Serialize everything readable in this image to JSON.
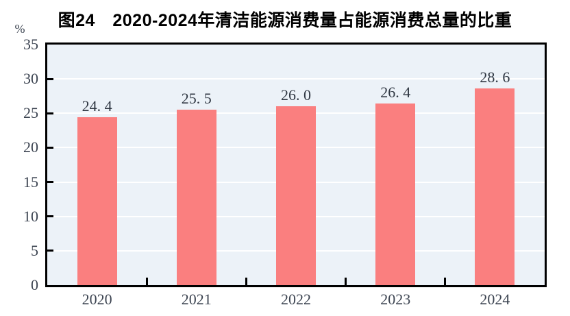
{
  "header": {
    "title": "图24　2020-2024年清洁能源消费量占能源消费总量的比重"
  },
  "chart_data": {
    "type": "bar",
    "title": "图24　2020-2024年清洁能源消费量占能源消费总量的比重",
    "categories": [
      "2020",
      "2021",
      "2022",
      "2023",
      "2024"
    ],
    "values": [
      24.4,
      25.5,
      26.0,
      26.4,
      28.6
    ],
    "value_labels": [
      "24. 4",
      "25. 5",
      "26. 0",
      "26. 4",
      "28. 6"
    ],
    "unit_label": "%",
    "xlabel": "",
    "ylabel": "%",
    "ylim": [
      0,
      35
    ],
    "yticks": [
      0,
      5,
      10,
      15,
      20,
      25,
      30,
      35
    ],
    "ytick_step": 5,
    "grid": true,
    "legend_position": "none",
    "colors": {
      "bar": "#fa7f7f",
      "plot_background": "#ecf2f8",
      "gridline": "#ffffff",
      "axis_border": "#000000",
      "tick_label": "#3b4350",
      "title": "#000000"
    }
  }
}
